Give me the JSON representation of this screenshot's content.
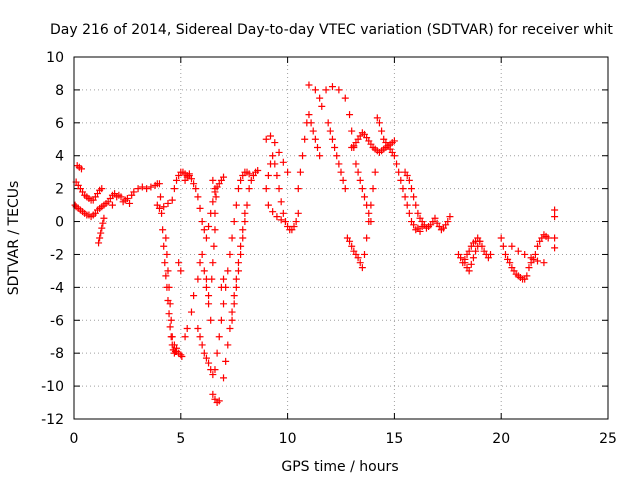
{
  "chart_data": {
    "type": "scatter",
    "title": "Day 216 of 2014, Sidereal Day-to-day VTEC variation (SDTVAR) for receiver whit",
    "xlabel": "GPS time / hours",
    "ylabel": "SDTVAR / TECUs",
    "xlim": [
      0,
      25
    ],
    "ylim": [
      -12,
      10
    ],
    "xticks": [
      "0",
      "5",
      "10",
      "15",
      "20",
      "25"
    ],
    "yticks": [
      "-12",
      "-10",
      "-8",
      "-6",
      "-4",
      "-2",
      "0",
      "2",
      "4",
      "6",
      "8",
      "10"
    ],
    "grid": true,
    "marker": "+",
    "marker_color": "#ff0000",
    "series": [
      {
        "name": "SDTVAR",
        "x": [
          0.05,
          0.1,
          0.2,
          0.3,
          0.4,
          0.5,
          0.6,
          0.7,
          0.8,
          0.9,
          1.0,
          1.1,
          1.2,
          1.3,
          1.4,
          1.5,
          1.6,
          1.7,
          1.8,
          1.9,
          0.1,
          0.2,
          0.3,
          0.4,
          0.5,
          0.6,
          0.7,
          0.8,
          0.9,
          1.0,
          1.1,
          1.2,
          1.3,
          0.15,
          0.25,
          0.35,
          1.15,
          1.2,
          1.25,
          1.3,
          1.35,
          1.4,
          1.8,
          2.0,
          2.1,
          2.2,
          2.3,
          2.4,
          2.5,
          2.6,
          2.7,
          2.8,
          3.0,
          3.2,
          3.4,
          3.6,
          3.8,
          3.9,
          4.0,
          4.05,
          4.1,
          4.15,
          4.2,
          4.25,
          4.3,
          4.35,
          4.4,
          4.45,
          4.5,
          4.55,
          4.6,
          4.65,
          4.7,
          4.75,
          4.8,
          3.9,
          4.0,
          4.2,
          4.4,
          4.6,
          4.7,
          4.8,
          4.9,
          5.0,
          5.1,
          5.2,
          5.3,
          5.4,
          4.3,
          4.35,
          4.4,
          4.45,
          4.5,
          4.55,
          4.6,
          4.7,
          4.8,
          4.9,
          5.0,
          5.05,
          4.9,
          5.0,
          5.2,
          5.3,
          5.4,
          5.5,
          5.6,
          5.7,
          5.8,
          5.9,
          6.0,
          6.1,
          6.2,
          6.3,
          6.4,
          6.5,
          6.6,
          6.7,
          6.8,
          6.9,
          7.0,
          5.2,
          5.3,
          5.5,
          5.6,
          5.8,
          5.9,
          6.0,
          6.1,
          6.2,
          6.3,
          5.8,
          5.9,
          6.0,
          6.1,
          6.2,
          6.3,
          6.4,
          6.5,
          6.6,
          6.7,
          6.8,
          6.9,
          7.0,
          7.1,
          7.2,
          7.3,
          7.4,
          7.5,
          7.6,
          7.7,
          7.8,
          7.9,
          8.0,
          8.1,
          8.2,
          6.2,
          6.3,
          6.4,
          6.5,
          6.6,
          6.7,
          6.8,
          6.9,
          7.0,
          6.45,
          6.5,
          6.55,
          6.6,
          6.6,
          6.65,
          6.6,
          6.5,
          7.0,
          7.1,
          7.2,
          7.3,
          7.4,
          7.5,
          7.6,
          7.7,
          7.8,
          7.9,
          8.0,
          7.4,
          7.5,
          7.6,
          7.7,
          7.8,
          7.9,
          8.0,
          8.1,
          8.2,
          8.3,
          8.4,
          8.5,
          8.6,
          9.0,
          9.1,
          9.2,
          9.3,
          9.4,
          9.5,
          9.6,
          9.7,
          9.8,
          9.9,
          10.0,
          10.1,
          10.2,
          10.3,
          10.4,
          10.5,
          9.0,
          9.2,
          9.4,
          9.6,
          9.8,
          10.0,
          9.1,
          9.3,
          9.5,
          9.7,
          9.9,
          10.5,
          10.6,
          10.7,
          10.8,
          10.9,
          11.0,
          11.1,
          11.2,
          11.3,
          11.4,
          11.5,
          11.0,
          11.3,
          11.6,
          11.9,
          12.0,
          12.1,
          12.2,
          12.3,
          12.4,
          12.5,
          12.6,
          12.7,
          11.5,
          11.8,
          12.1,
          12.4,
          12.7,
          12.9,
          13.0,
          13.1,
          13.2,
          13.3,
          13.4,
          13.5,
          13.6,
          13.7,
          13.8,
          13.9,
          12.8,
          12.9,
          13.0,
          13.1,
          13.2,
          13.3,
          13.4,
          13.5,
          13.6,
          13.7,
          13.8,
          13.9,
          14.0,
          14.1,
          13.0,
          13.1,
          13.2,
          13.3,
          13.4,
          13.5,
          13.6,
          13.7,
          13.8,
          13.9,
          14.0,
          14.1,
          14.2,
          14.3,
          14.4,
          14.5,
          14.6,
          14.7,
          14.8,
          14.9,
          15.0,
          14.2,
          14.3,
          14.4,
          14.5,
          14.6,
          14.7,
          14.8,
          14.9,
          15.0,
          15.1,
          15.2,
          15.3,
          15.4,
          15.5,
          15.6,
          15.7,
          15.8,
          15.9,
          16.0,
          16.1,
          16.2,
          16.3,
          15.5,
          15.6,
          15.7,
          15.8,
          15.9,
          16.0,
          16.1,
          16.2,
          16.3,
          16.4,
          16.5,
          16.6,
          16.7,
          16.8,
          16.9,
          17.0,
          17.1,
          17.2,
          17.3,
          17.4,
          17.5,
          17.6,
          18.0,
          18.1,
          18.2,
          18.3,
          18.4,
          18.5,
          18.6,
          18.7,
          18.8,
          18.9,
          19.0,
          19.1,
          19.2,
          19.3,
          19.4,
          19.5,
          18.3,
          18.4,
          18.5,
          18.6,
          18.7,
          18.8,
          18.9,
          19.0,
          20.0,
          20.1,
          20.2,
          20.3,
          20.4,
          20.5,
          20.6,
          20.7,
          20.8,
          20.9,
          21.0,
          21.1,
          21.2,
          21.3,
          21.4,
          21.5,
          21.6,
          21.7,
          21.8,
          21.9,
          22.0,
          22.1,
          22.2,
          20.5,
          20.8,
          21.1,
          21.4,
          21.7,
          22.0,
          22.5,
          22.5,
          22.5,
          22.5
        ],
        "y": [
          1.0,
          0.9,
          0.8,
          0.7,
          0.6,
          0.5,
          0.4,
          0.4,
          0.3,
          0.4,
          0.5,
          0.7,
          0.8,
          0.9,
          1.0,
          1.1,
          1.2,
          1.4,
          1.6,
          1.7,
          2.4,
          2.2,
          2.0,
          1.8,
          1.6,
          1.5,
          1.4,
          1.3,
          1.3,
          1.5,
          1.7,
          1.9,
          2.0,
          3.4,
          3.3,
          3.2,
          -1.3,
          -1.0,
          -0.7,
          -0.4,
          -0.1,
          0.2,
          1.0,
          1.5,
          1.6,
          1.5,
          1.2,
          1.3,
          1.4,
          1.1,
          1.6,
          1.8,
          2.0,
          2.1,
          2.0,
          2.1,
          2.2,
          2.3,
          2.3,
          1.5,
          0.5,
          -0.5,
          -1.5,
          -2.5,
          -3.3,
          -4.0,
          -4.8,
          -5.6,
          -6.4,
          -7.0,
          -7.5,
          -7.8,
          -8.0,
          -7.9,
          -7.7,
          1.0,
          0.8,
          0.9,
          1.1,
          1.3,
          2.0,
          2.5,
          2.8,
          3.0,
          3.0,
          2.9,
          2.8,
          2.9,
          -1.0,
          -2.0,
          -3.0,
          -4.0,
          -5.0,
          -6.0,
          -7.0,
          -7.5,
          -7.9,
          -8.0,
          -8.1,
          -8.2,
          -2.5,
          -3.0,
          2.5,
          2.7,
          2.8,
          2.6,
          2.3,
          2.0,
          1.5,
          0.8,
          0.0,
          -0.5,
          -1.0,
          -0.3,
          0.5,
          1.2,
          1.8,
          2.1,
          2.3,
          2.5,
          2.7,
          -7.0,
          -6.5,
          -5.5,
          -4.5,
          -3.5,
          -2.5,
          -2.0,
          -3.0,
          -4.0,
          -5.0,
          -6.5,
          -7.0,
          -7.5,
          -8.0,
          -8.3,
          -8.6,
          -9.0,
          -9.3,
          -9.0,
          -8.0,
          -7.0,
          -6.0,
          -5.0,
          -4.0,
          -3.0,
          -2.0,
          -1.0,
          0.0,
          1.0,
          2.0,
          2.5,
          2.8,
          3.0,
          3.0,
          2.9,
          -3.5,
          -4.5,
          -6.0,
          -10.5,
          -10.8,
          -11.0,
          -10.9,
          -4.0,
          -3.5,
          -3.5,
          -2.5,
          -1.5,
          -0.5,
          0.5,
          1.5,
          2.0,
          2.5,
          -9.5,
          -8.5,
          -7.5,
          -6.5,
          -5.5,
          -4.5,
          -3.5,
          -2.5,
          -1.5,
          -0.5,
          0.5,
          -6.0,
          -5.0,
          -4.0,
          -3.0,
          -2.0,
          -1.0,
          0.0,
          1.0,
          2.0,
          2.5,
          2.8,
          3.0,
          3.1,
          2.0,
          2.8,
          3.5,
          4.0,
          3.5,
          2.8,
          2.0,
          1.2,
          0.5,
          0.0,
          -0.3,
          -0.5,
          -0.5,
          -0.3,
          0.0,
          0.5,
          5.0,
          5.2,
          4.8,
          4.2,
          3.6,
          3.0,
          1.0,
          0.6,
          0.3,
          0.1,
          0.0,
          2.0,
          3.0,
          4.0,
          5.0,
          6.0,
          6.5,
          6.0,
          5.5,
          5.0,
          4.5,
          4.0,
          8.3,
          8.0,
          7.0,
          6.0,
          5.5,
          5.0,
          4.5,
          4.0,
          3.5,
          3.0,
          2.5,
          2.0,
          7.5,
          8.0,
          8.2,
          8.0,
          7.5,
          6.5,
          5.5,
          4.5,
          3.5,
          3.0,
          2.5,
          2.0,
          1.5,
          1.0,
          0.5,
          0.0,
          -1.0,
          -1.2,
          -1.5,
          -1.8,
          -2.0,
          -2.2,
          -2.5,
          -2.8,
          -2.0,
          -1.0,
          0.0,
          1.0,
          2.0,
          3.0,
          4.5,
          4.6,
          4.8,
          5.0,
          5.2,
          5.4,
          5.3,
          5.1,
          4.9,
          4.7,
          4.5,
          4.4,
          4.3,
          4.2,
          4.3,
          4.4,
          4.5,
          4.6,
          4.7,
          4.8,
          4.9,
          6.3,
          6.0,
          5.5,
          5.0,
          4.8,
          4.6,
          4.4,
          4.2,
          4.0,
          3.5,
          3.0,
          2.5,
          2.0,
          1.5,
          1.0,
          0.5,
          0.0,
          -0.2,
          -0.5,
          -0.4,
          -0.6,
          -0.3,
          3.0,
          2.8,
          2.5,
          2.0,
          1.5,
          1.0,
          0.5,
          0.2,
          0.0,
          -0.2,
          -0.4,
          -0.3,
          -0.2,
          0.0,
          0.2,
          -0.1,
          -0.3,
          -0.5,
          -0.4,
          -0.2,
          0.0,
          0.3,
          -2.0,
          -2.2,
          -2.5,
          -2.3,
          -2.0,
          -1.8,
          -1.5,
          -1.3,
          -1.2,
          -1.0,
          -1.2,
          -1.5,
          -1.8,
          -2.0,
          -2.2,
          -2.0,
          -2.5,
          -2.8,
          -3.0,
          -2.6,
          -2.2,
          -1.8,
          -1.5,
          -1.2,
          -1.0,
          -1.5,
          -2.0,
          -2.3,
          -2.5,
          -2.8,
          -3.0,
          -3.2,
          -3.3,
          -3.4,
          -3.5,
          -3.5,
          -3.3,
          -2.8,
          -2.5,
          -2.3,
          -2.0,
          -1.5,
          -1.2,
          -1.0,
          -0.8,
          -0.9,
          -1.0,
          -1.5,
          -1.8,
          -2.0,
          -2.2,
          -2.4,
          -2.5,
          0.7,
          0.3,
          -1.0,
          -1.6
        ]
      }
    ]
  }
}
